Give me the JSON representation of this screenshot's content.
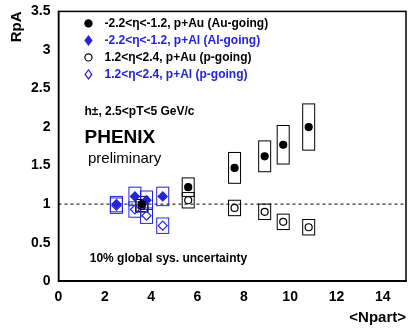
{
  "chart_data": {
    "type": "scatter",
    "xlabel": "<Npart>",
    "ylabel": "RpA",
    "xlim": [
      0,
      15
    ],
    "ylim": [
      0,
      3.5
    ],
    "xticks": [
      0,
      2,
      4,
      6,
      8,
      10,
      12,
      14
    ],
    "yticks": [
      0,
      0.5,
      1,
      1.5,
      2,
      2.5,
      3,
      3.5
    ],
    "grid": false,
    "legend": "upper left",
    "hline": 1,
    "annotations": [
      "h±, 2.5<pT<5 GeV/c",
      "PHENIX",
      "preliminary",
      "10% global sys. uncertainty"
    ],
    "series": [
      {
        "name": "-2.2<η<-1.2, p+Au (Au-going)",
        "color": "#000000",
        "marker": "circle",
        "x": [
          3.6,
          5.6,
          7.6,
          8.9,
          9.7,
          10.8
        ],
        "values": [
          1.0,
          1.22,
          1.47,
          1.62,
          1.77,
          2.0
        ],
        "sys": [
          0.1,
          0.12,
          0.2,
          0.2,
          0.25,
          0.3
        ]
      },
      {
        "name": "-2.2<η<-1.2, p+Al (Al-going)",
        "color": "#2323d8",
        "marker": "diamond",
        "x": [
          2.5,
          3.3,
          3.8,
          4.5
        ],
        "values": [
          1.0,
          1.1,
          1.05,
          1.1
        ],
        "sys": [
          0.1,
          0.12,
          0.12,
          0.12
        ]
      },
      {
        "name": "1.2<η<2.4, p+Au (p-going)",
        "color": "#000000",
        "marker": "circle-open",
        "x": [
          3.6,
          5.6,
          7.6,
          8.9,
          9.7,
          10.8
        ],
        "values": [
          0.98,
          1.05,
          0.95,
          0.9,
          0.77,
          0.7
        ],
        "sys": [
          0.08,
          0.1,
          0.1,
          0.1,
          0.1,
          0.1
        ]
      },
      {
        "name": "1.2<η<2.4, p+Al (p-going)",
        "color": "#2323d8",
        "marker": "diamond-open",
        "x": [
          2.5,
          3.3,
          3.8,
          4.5
        ],
        "values": [
          0.98,
          0.93,
          0.85,
          0.72
        ],
        "sys": [
          0.1,
          0.1,
          0.1,
          0.1
        ]
      }
    ]
  }
}
